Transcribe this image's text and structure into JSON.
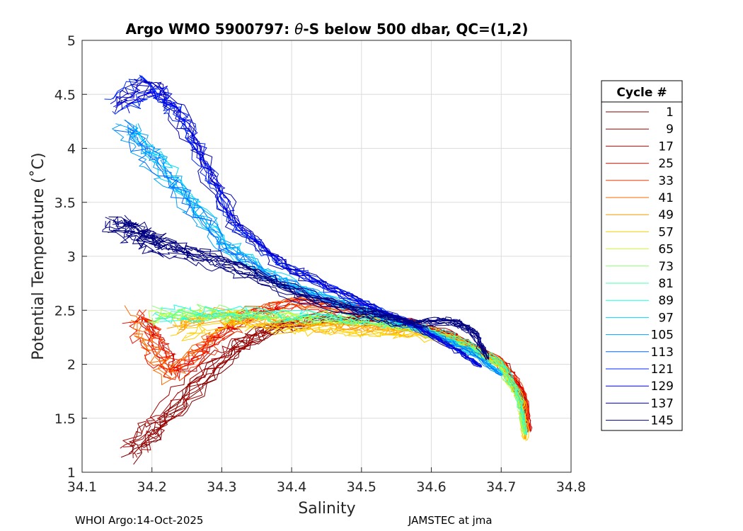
{
  "chart_data": {
    "type": "line",
    "title_prefix": "Argo WMO 5900797: ",
    "title_theta": "θ",
    "title_suffix": "-S below 500 dbar,  QC=(1,2)",
    "xlabel": "Salinity",
    "ylabel": "Potential Temperature (˚C)",
    "xlim": [
      34.1,
      34.8
    ],
    "ylim": [
      1,
      5
    ],
    "xticks": [
      "34.1",
      "34.2",
      "34.3",
      "34.4",
      "34.5",
      "34.6",
      "34.7",
      "34.8"
    ],
    "yticks": [
      "1",
      "1.5",
      "2",
      "2.5",
      "3",
      "3.5",
      "4",
      "4.5",
      "5"
    ],
    "grid": true,
    "colormap": "jet",
    "legend": {
      "title": "Cycle #",
      "placement": "outside-right",
      "entries": [
        {
          "label": "1",
          "color": "#800000"
        },
        {
          "label": "9",
          "color": "#a50000"
        },
        {
          "label": "17",
          "color": "#cc0000"
        },
        {
          "label": "25",
          "color": "#f21000"
        },
        {
          "label": "33",
          "color": "#ff3a00"
        },
        {
          "label": "41",
          "color": "#ff6a00"
        },
        {
          "label": "49",
          "color": "#ff9a00"
        },
        {
          "label": "57",
          "color": "#ffd000"
        },
        {
          "label": "65",
          "color": "#c8ff2e"
        },
        {
          "label": "73",
          "color": "#88ff6f"
        },
        {
          "label": "81",
          "color": "#4cffac"
        },
        {
          "label": "89",
          "color": "#14ffe4"
        },
        {
          "label": "97",
          "color": "#00d8ff"
        },
        {
          "label": "105",
          "color": "#00a0ff"
        },
        {
          "label": "113",
          "color": "#0064ff"
        },
        {
          "label": "121",
          "color": "#0028ff"
        },
        {
          "label": "129",
          "color": "#0000f0"
        },
        {
          "label": "137",
          "color": "#0000b4"
        },
        {
          "label": "145",
          "color": "#000080"
        }
      ]
    },
    "curve_keypoints": [
      {
        "name": "cycles 1-9 (dark red, early)",
        "colors": [
          "#800000",
          "#a50000"
        ],
        "points": [
          [
            34.17,
            1.15
          ],
          [
            34.22,
            1.5
          ],
          [
            34.3,
            2.05
          ],
          [
            34.36,
            2.3
          ],
          [
            34.44,
            2.42
          ],
          [
            34.55,
            2.38
          ],
          [
            34.63,
            2.25
          ],
          [
            34.7,
            2.0
          ],
          [
            34.73,
            1.7
          ],
          [
            34.735,
            1.4
          ]
        ]
      },
      {
        "name": "cycles 17-41 (red/orange)",
        "colors": [
          "#cc0000",
          "#f21000",
          "#ff3a00",
          "#ff6a00"
        ],
        "points": [
          [
            34.18,
            2.45
          ],
          [
            34.2,
            2.2
          ],
          [
            34.23,
            1.9
          ],
          [
            34.28,
            2.2
          ],
          [
            34.33,
            2.45
          ],
          [
            34.4,
            2.58
          ],
          [
            34.48,
            2.52
          ],
          [
            34.56,
            2.4
          ],
          [
            34.64,
            2.22
          ],
          [
            34.7,
            2.02
          ],
          [
            34.73,
            1.75
          ],
          [
            34.74,
            1.38
          ]
        ]
      },
      {
        "name": "cycles 49-57 (orange/yellow)",
        "colors": [
          "#ff9a00",
          "#ffd000"
        ],
        "points": [
          [
            34.24,
            2.3
          ],
          [
            34.3,
            2.42
          ],
          [
            34.38,
            2.36
          ],
          [
            34.45,
            2.33
          ],
          [
            34.52,
            2.3
          ],
          [
            34.58,
            2.28
          ],
          [
            34.64,
            2.2
          ],
          [
            34.7,
            2.0
          ],
          [
            34.73,
            1.65
          ],
          [
            34.735,
            1.3
          ]
        ]
      },
      {
        "name": "cycles 65-89 (green)",
        "colors": [
          "#c8ff2e",
          "#88ff6f",
          "#4cffac",
          "#14ffe4"
        ],
        "points": [
          [
            34.21,
            2.45
          ],
          [
            34.28,
            2.47
          ],
          [
            34.36,
            2.46
          ],
          [
            34.44,
            2.44
          ],
          [
            34.52,
            2.4
          ],
          [
            34.58,
            2.34
          ],
          [
            34.64,
            2.22
          ],
          [
            34.7,
            2.0
          ],
          [
            34.725,
            1.7
          ],
          [
            34.735,
            1.35
          ]
        ]
      },
      {
        "name": "cycles 97-113 (cyan/light blue)",
        "colors": [
          "#00d8ff",
          "#00a0ff",
          "#0064ff"
        ],
        "points": [
          [
            34.16,
            4.2
          ],
          [
            34.2,
            3.9
          ],
          [
            34.25,
            3.5
          ],
          [
            34.3,
            3.1
          ],
          [
            34.37,
            2.8
          ],
          [
            34.45,
            2.6
          ],
          [
            34.53,
            2.45
          ],
          [
            34.6,
            2.28
          ],
          [
            34.66,
            2.1
          ],
          [
            34.7,
            1.9
          ]
        ]
      },
      {
        "name": "cycles 121-137 (blue)",
        "colors": [
          "#0028ff",
          "#0000f0",
          "#0000b4"
        ],
        "points": [
          [
            34.15,
            4.4
          ],
          [
            34.2,
            4.6
          ],
          [
            34.24,
            4.3
          ],
          [
            34.28,
            3.8
          ],
          [
            34.32,
            3.3
          ],
          [
            34.38,
            2.95
          ],
          [
            34.45,
            2.72
          ],
          [
            34.52,
            2.52
          ],
          [
            34.58,
            2.35
          ],
          [
            34.64,
            2.12
          ],
          [
            34.67,
            1.98
          ]
        ]
      },
      {
        "name": "cycle 145 (navy)",
        "colors": [
          "#000080"
        ],
        "points": [
          [
            34.14,
            3.3
          ],
          [
            34.18,
            3.2
          ],
          [
            34.21,
            3.1
          ],
          [
            34.27,
            3.0
          ],
          [
            34.34,
            2.85
          ],
          [
            34.42,
            2.62
          ],
          [
            34.5,
            2.48
          ],
          [
            34.57,
            2.38
          ],
          [
            34.63,
            2.4
          ],
          [
            34.66,
            2.3
          ],
          [
            34.68,
            2.05
          ]
        ]
      }
    ]
  },
  "footer": {
    "left": "WHOI Argo:14-Oct-2025",
    "right": "JAMSTEC at jma"
  }
}
